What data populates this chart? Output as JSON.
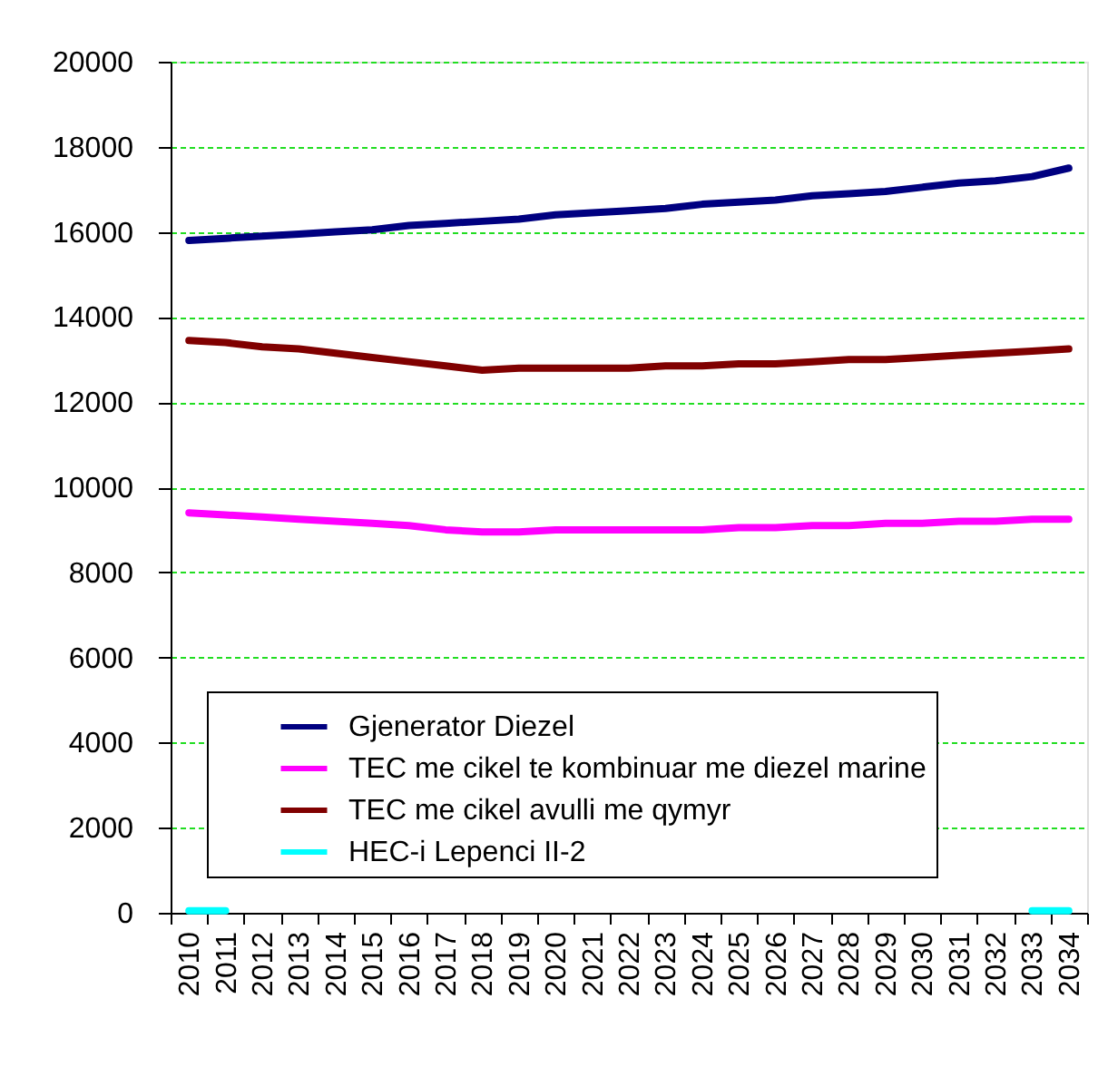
{
  "chart_data": {
    "type": "line",
    "categories": [
      "2010",
      "2011",
      "2012",
      "2013",
      "2014",
      "2015",
      "2016",
      "2017",
      "2018",
      "2019",
      "2020",
      "2021",
      "2022",
      "2023",
      "2024",
      "2025",
      "2026",
      "2027",
      "2028",
      "2029",
      "2030",
      "2031",
      "2032",
      "2033",
      "2034"
    ],
    "series": [
      {
        "name": "Gjenerator Diezel",
        "color": "#000080",
        "values": [
          15800,
          15850,
          15900,
          15950,
          16000,
          16050,
          16150,
          16200,
          16250,
          16300,
          16400,
          16450,
          16500,
          16550,
          16650,
          16700,
          16750,
          16850,
          16900,
          16950,
          17050,
          17150,
          17200,
          17300,
          17500
        ]
      },
      {
        "name": "TEC me cikel te kombinuar me diezel marine",
        "color": "#ff00ff",
        "values": [
          9400,
          9350,
          9300,
          9250,
          9200,
          9150,
          9100,
          9000,
          8950,
          8950,
          9000,
          9000,
          9000,
          9000,
          9000,
          9050,
          9050,
          9100,
          9100,
          9150,
          9150,
          9200,
          9200,
          9250,
          9250
        ]
      },
      {
        "name": "TEC me cikel avulli me qymyr",
        "color": "#800000",
        "values": [
          13450,
          13400,
          13300,
          13250,
          13150,
          13050,
          12950,
          12850,
          12750,
          12800,
          12800,
          12800,
          12800,
          12850,
          12850,
          12900,
          12900,
          12950,
          13000,
          13000,
          13050,
          13100,
          13150,
          13200,
          13250
        ]
      },
      {
        "name": "HEC-i Lepenci II-2",
        "color": "#00ffff",
        "values": [
          50,
          50,
          null,
          null,
          null,
          null,
          null,
          null,
          null,
          null,
          null,
          null,
          null,
          null,
          null,
          null,
          null,
          null,
          null,
          null,
          null,
          null,
          null,
          50,
          50
        ]
      }
    ],
    "ylim": [
      0,
      20000
    ],
    "yticks": [
      0,
      2000,
      4000,
      6000,
      8000,
      10000,
      12000,
      14000,
      16000,
      18000,
      20000
    ],
    "grid": "y",
    "legend": "bottom",
    "line_style": "solid"
  }
}
